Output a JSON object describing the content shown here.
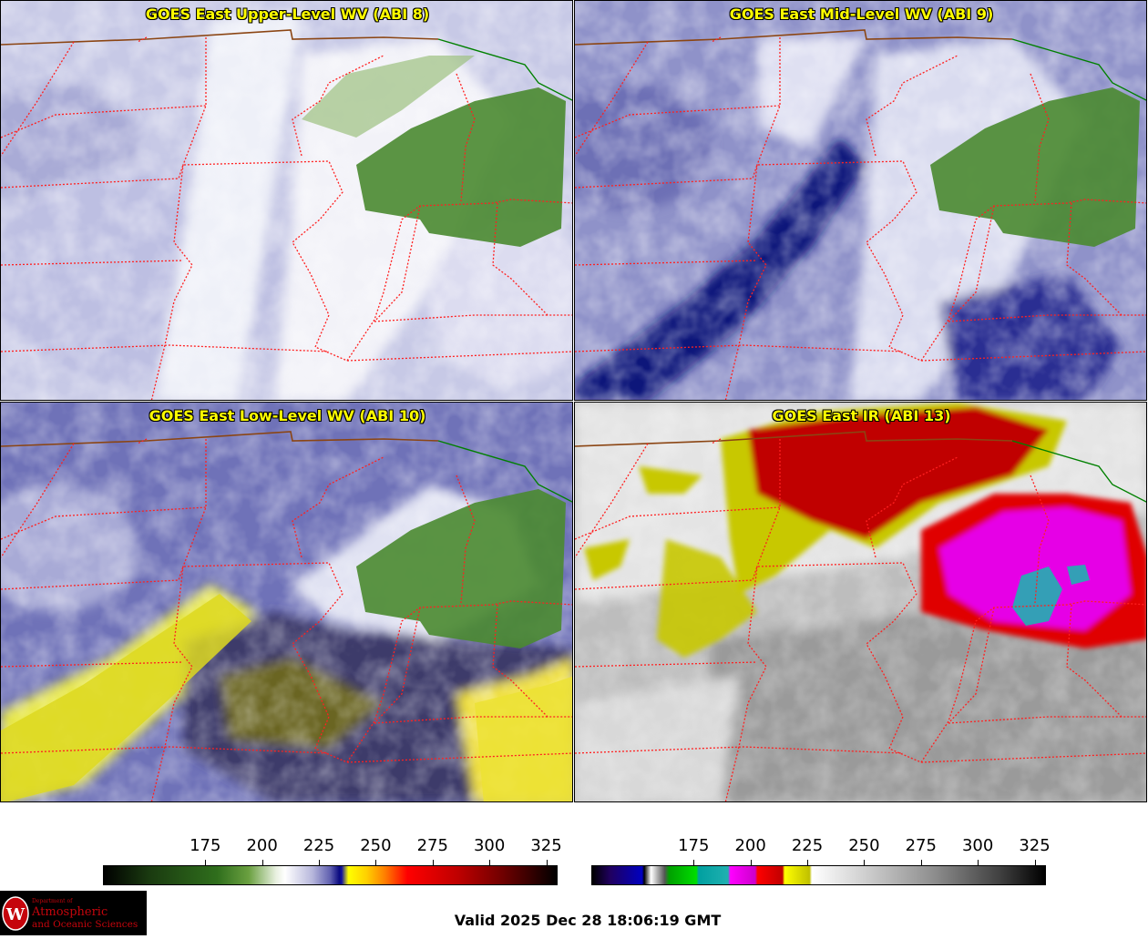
{
  "panels": [
    {
      "title": "GOES East Upper-Level WV (ABI 8)"
    },
    {
      "title": "GOES East Mid-Level WV (ABI 9)"
    },
    {
      "title": "GOES East Low-Level WV (ABI 10)"
    },
    {
      "title": "GOES East IR (ABI 13)"
    }
  ],
  "colorbar_wv": {
    "ticks": [
      "175",
      "200",
      "225",
      "250",
      "275",
      "300",
      "325"
    ],
    "range": [
      130,
      330
    ]
  },
  "colorbar_ir": {
    "ticks": [
      "175",
      "200",
      "225",
      "250",
      "275",
      "300",
      "325"
    ],
    "range": [
      130,
      330
    ]
  },
  "logo": {
    "line1": "Department of",
    "line2": "Atmospheric",
    "line3": "and Oceanic Sciences",
    "letter": "W"
  },
  "footer": {
    "valid": "Valid 2025 Dec 28 18:06:19 GMT"
  },
  "colors": {
    "title": "#ffff00",
    "state_border": "#ff2020",
    "intl_border": "#8b4513",
    "lake_border": "#008000"
  }
}
